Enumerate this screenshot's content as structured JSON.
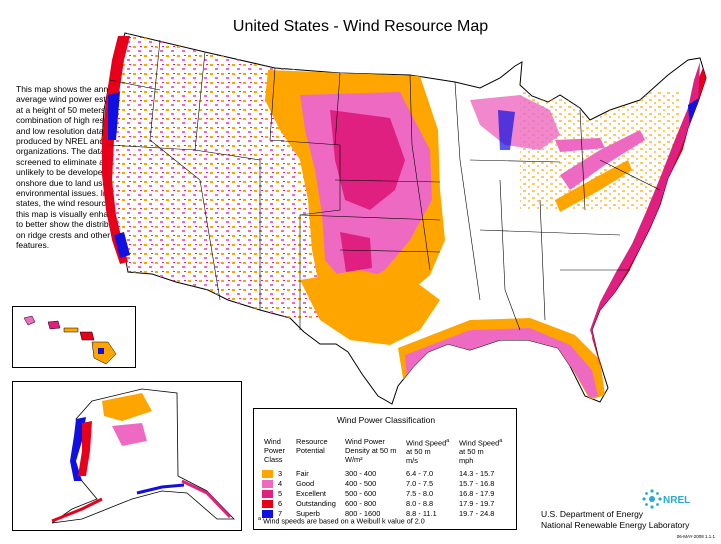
{
  "title": "United States - Wind Resource Map",
  "description": "This map shows the annual average wind power estimates at a height of 50 meters. It is a combination of high resolution and low resolution datasets produced by NREL and other organizations. The data was screened to eliminate areas unlikely to be developed onshore due to land use or environmental issues. In many states, the wind resource on this map is visually enhanced to better show the distribution on ridge crests and other features.",
  "colors": {
    "fair": "#FFA500",
    "good": "#EE6AC2",
    "excellent": "#E02080",
    "outstanding": "#E8001A",
    "superb": "#1010E0",
    "land": "#FFFFFF",
    "border": "#000000"
  },
  "legend": {
    "title": "Wind Power Classification",
    "headers": {
      "class": [
        "Wind",
        "Power",
        "Class"
      ],
      "potential": [
        "Resource",
        "Potential"
      ],
      "density": [
        "Wind Power",
        "Density at 50 m",
        "W/m²"
      ],
      "speed_ms": [
        "Wind Speed",
        "at 50 m",
        "m/s"
      ],
      "speed_mph": [
        "Wind Speed",
        "at 50 m",
        "mph"
      ],
      "footnote_marker": "a"
    },
    "rows": [
      {
        "cls": "3",
        "potential": "Fair",
        "density": "300 - 400",
        "speed_ms": "6.4 - 7.0",
        "speed_mph": "14.3 - 15.7",
        "color": "#FFA500"
      },
      {
        "cls": "4",
        "potential": "Good",
        "density": "400 - 500",
        "speed_ms": "7.0 - 7.5",
        "speed_mph": "15.7 - 16.8",
        "color": "#EE6AC2"
      },
      {
        "cls": "5",
        "potential": "Excellent",
        "density": "500 - 600",
        "speed_ms": "7.5 - 8.0",
        "speed_mph": "16.8 - 17.9",
        "color": "#E02080"
      },
      {
        "cls": "6",
        "potential": "Outstanding",
        "density": "600 - 800",
        "speed_ms": "8.0 - 8.8",
        "speed_mph": "17.9 - 19.7",
        "color": "#E8001A"
      },
      {
        "cls": "7",
        "potential": "Superb",
        "density": "800 - 1600",
        "speed_ms": "8.8 - 11.1",
        "speed_mph": "19.7 - 24.8",
        "color": "#1010E0"
      }
    ],
    "footnote_marker": "a",
    "footnote": "Wind speeds are based on a Weibull k value of 2.0"
  },
  "logo": {
    "text": "NREL"
  },
  "agency": {
    "line1": "U.S. Department of Energy",
    "line2": "National Renewable Energy Laboratory"
  },
  "code": "06-MAY-2008 1.1.1"
}
